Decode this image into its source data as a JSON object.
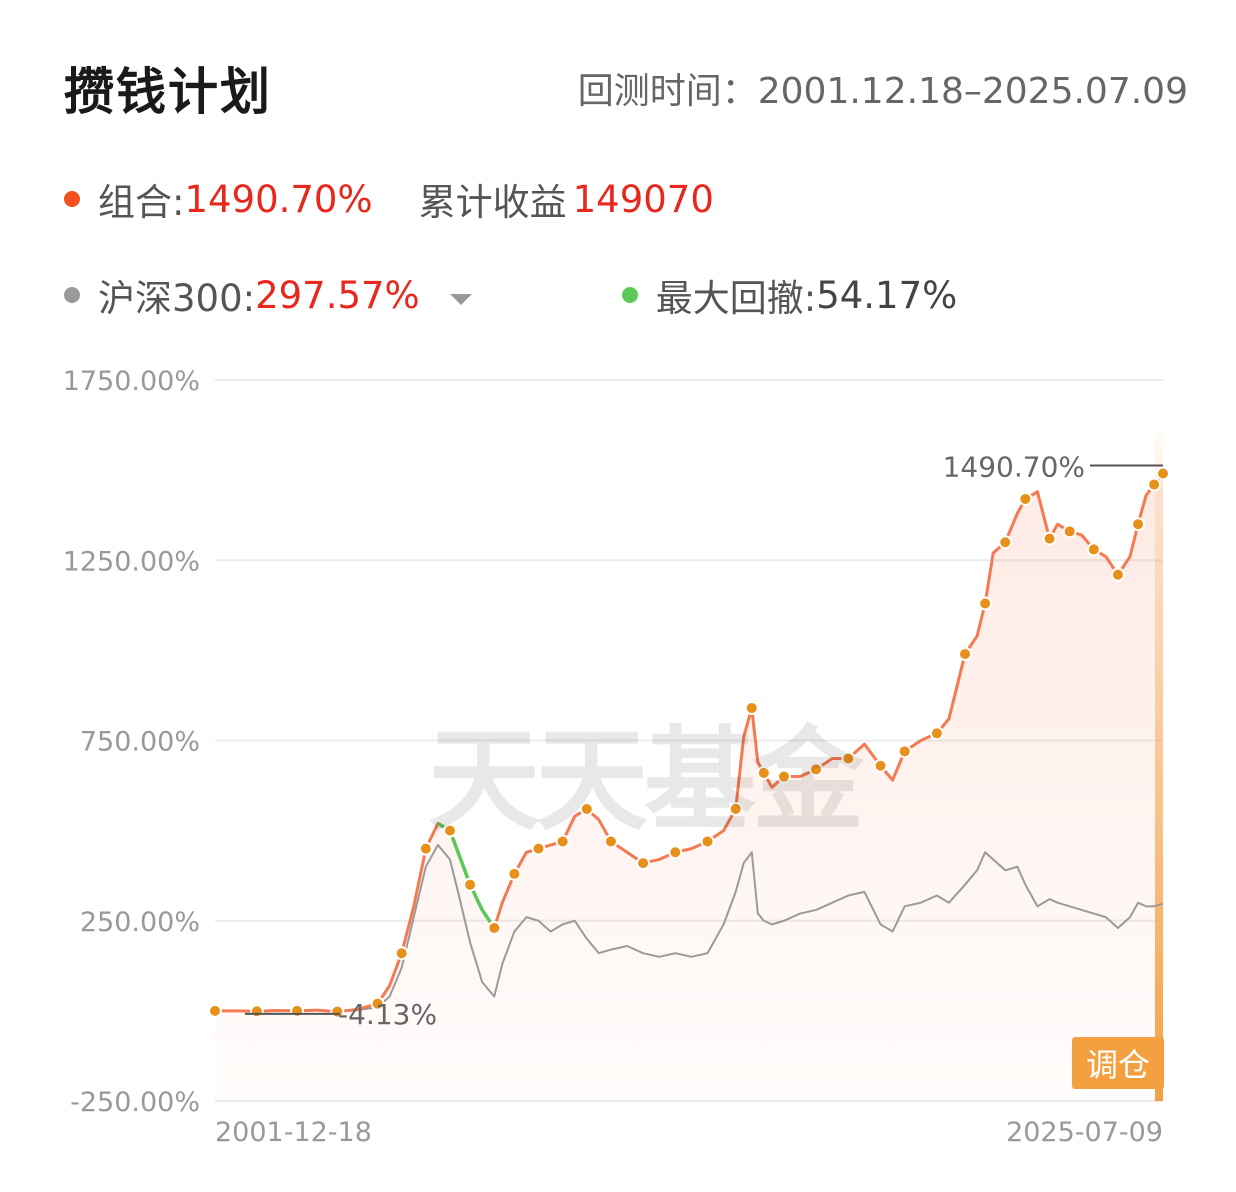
{
  "header": {
    "title": "攒钱计划",
    "period_label": "回测时间：",
    "period_value": "2001.12.18–2025.07.09"
  },
  "legend": {
    "portfolio_label": "组合:",
    "portfolio_value": "1490.70%",
    "cumulative_label": "累计收益",
    "cumulative_value": "149070",
    "benchmark_label": "沪深300:",
    "benchmark_value": "297.57%",
    "drawdown_label": "最大回撤:",
    "drawdown_value": "54.17%"
  },
  "colors": {
    "portfolio": "#f47a52",
    "portfolio_dot": "#f4511e",
    "benchmark": "#9a9a9a",
    "drawdown": "#5cc858",
    "marker": "#e8901c",
    "red_text": "#e8281d",
    "button": "#f5a040"
  },
  "watermark": "天天基金",
  "rebalance_button": "调仓",
  "chart_data": {
    "type": "line",
    "ylim": [
      -250,
      1750
    ],
    "yticks": [
      "1750.00%",
      "1250.00%",
      "750.00%",
      "250.00%",
      "-250.00%"
    ],
    "x_start_label": "2001-12-18",
    "x_end_label": "2025-07-09",
    "grid": true,
    "annotations": {
      "max_label": "1490.70%",
      "min_label": "-4.13%"
    },
    "series": [
      {
        "name": "组合",
        "x": [
          2001.96,
          2002.5,
          2003,
          2003.5,
          2004,
          2004.5,
          2005,
          2005.5,
          2006,
          2006.3,
          2006.6,
          2006.9,
          2007.2,
          2007.5,
          2007.8,
          2008.0,
          2008.3,
          2008.6,
          2008.9,
          2009.1,
          2009.4,
          2009.7,
          2010,
          2010.3,
          2010.6,
          2010.9,
          2011.2,
          2011.5,
          2011.8,
          2012.2,
          2012.6,
          2013,
          2013.4,
          2013.8,
          2014.2,
          2014.6,
          2014.9,
          2015.1,
          2015.3,
          2015.45,
          2015.6,
          2015.8,
          2016.1,
          2016.5,
          2016.9,
          2017.3,
          2017.7,
          2018.1,
          2018.5,
          2018.8,
          2019.1,
          2019.5,
          2019.9,
          2020.2,
          2020.6,
          2020.9,
          2021.1,
          2021.3,
          2021.6,
          2021.9,
          2022.1,
          2022.4,
          2022.7,
          2022.9,
          2023.2,
          2023.5,
          2023.8,
          2024.1,
          2024.4,
          2024.7,
          2024.9,
          2025.1,
          2025.3,
          2025.52
        ],
        "values": [
          0,
          0,
          -1,
          1,
          0,
          2,
          -2,
          4,
          20,
          70,
          160,
          290,
          450,
          520,
          500,
          440,
          350,
          280,
          230,
          300,
          380,
          440,
          450,
          460,
          470,
          540,
          560,
          530,
          470,
          440,
          410,
          420,
          440,
          450,
          470,
          500,
          560,
          760,
          840,
          690,
          660,
          620,
          650,
          650,
          670,
          700,
          700,
          740,
          680,
          640,
          720,
          750,
          770,
          810,
          990,
          1040,
          1130,
          1270,
          1300,
          1380,
          1420,
          1440,
          1310,
          1350,
          1330,
          1320,
          1280,
          1260,
          1210,
          1260,
          1350,
          1430,
          1460,
          1490.7
        ]
      },
      {
        "name": "沪深300",
        "x": [
          2001.96,
          2002.5,
          2003,
          2003.5,
          2004,
          2004.5,
          2005,
          2005.5,
          2006,
          2006.3,
          2006.6,
          2006.9,
          2007.2,
          2007.5,
          2007.8,
          2008.0,
          2008.3,
          2008.6,
          2008.9,
          2009.1,
          2009.4,
          2009.7,
          2010,
          2010.3,
          2010.6,
          2010.9,
          2011.2,
          2011.5,
          2011.8,
          2012.2,
          2012.6,
          2013,
          2013.4,
          2013.8,
          2014.2,
          2014.6,
          2014.9,
          2015.1,
          2015.3,
          2015.45,
          2015.6,
          2015.8,
          2016.1,
          2016.5,
          2016.9,
          2017.3,
          2017.7,
          2018.1,
          2018.5,
          2018.8,
          2019.1,
          2019.5,
          2019.9,
          2020.2,
          2020.6,
          2020.9,
          2021.1,
          2021.3,
          2021.6,
          2021.9,
          2022.1,
          2022.4,
          2022.7,
          2022.9,
          2023.2,
          2023.5,
          2023.8,
          2024.1,
          2024.4,
          2024.7,
          2024.9,
          2025.1,
          2025.3,
          2025.52
        ],
        "values": [
          0,
          0,
          -1,
          1,
          0,
          2,
          -2,
          2,
          10,
          40,
          120,
          260,
          400,
          460,
          420,
          330,
          190,
          80,
          40,
          130,
          220,
          260,
          250,
          220,
          240,
          250,
          200,
          160,
          170,
          180,
          160,
          150,
          160,
          150,
          160,
          240,
          330,
          410,
          440,
          270,
          250,
          240,
          250,
          270,
          280,
          300,
          320,
          330,
          240,
          220,
          290,
          300,
          320,
          300,
          350,
          390,
          440,
          420,
          390,
          400,
          350,
          290,
          310,
          300,
          290,
          280,
          270,
          260,
          230,
          260,
          300,
          290,
          290,
          297.57
        ]
      }
    ]
  }
}
